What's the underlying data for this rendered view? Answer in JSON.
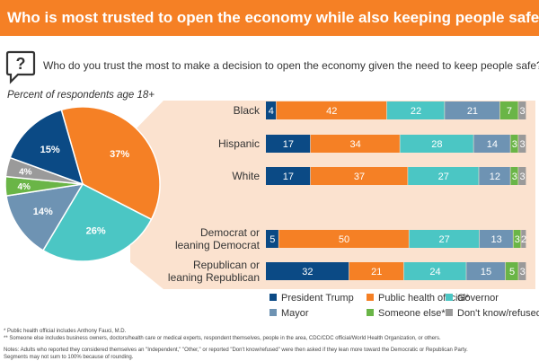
{
  "header": {
    "title": "Who is most trusted to open the economy while also keeping people safe?"
  },
  "question": "Who do you trust the most to make a decision to open the economy given the need to keep people safe?",
  "subtitle": "Percent of respondents age 18+",
  "colors": {
    "banner": "#f58025",
    "panel": "#fbe2cf",
    "text_on_dark": "#ffffff",
    "text_on_light": "#333333"
  },
  "chart_data": [
    {
      "type": "pie",
      "title": "Percent of respondents age 18+",
      "slices": [
        {
          "key": "public_health",
          "label": "Public health official*",
          "value": 37,
          "display": "37%",
          "color": "#f58025"
        },
        {
          "key": "governor",
          "label": "Governor",
          "value": 26,
          "display": "26%",
          "color": "#4bc6c4"
        },
        {
          "key": "mayor",
          "label": "Mayor",
          "value": 14,
          "display": "14%",
          "color": "#6e93b3"
        },
        {
          "key": "someone_else",
          "label": "Someone else**",
          "value": 4,
          "display": "4%",
          "color": "#6ab547"
        },
        {
          "key": "dont_know",
          "label": "Don't know/refused",
          "value": 4,
          "display": "4%",
          "color": "#9a9a9a"
        },
        {
          "key": "trump",
          "label": "President Trump",
          "value": 15,
          "display": "15%",
          "color": "#0b4a85"
        }
      ]
    },
    {
      "type": "bar",
      "stacked": true,
      "orientation": "horizontal",
      "categories": [
        "Black",
        "Hispanic",
        "White",
        "Democrat or leaning Democrat",
        "Republican or leaning Republican"
      ],
      "category_lines": [
        [
          "Black"
        ],
        [
          "Hispanic"
        ],
        [
          "White"
        ],
        [
          "Democrat or",
          "leaning Democrat"
        ],
        [
          "Republican or",
          "leaning Republican"
        ]
      ],
      "series": [
        {
          "name": "President Trump",
          "color": "#0b4a85",
          "values": [
            4,
            17,
            17,
            5,
            32
          ]
        },
        {
          "name": "Public health official*",
          "color": "#f58025",
          "values": [
            42,
            34,
            37,
            50,
            21
          ]
        },
        {
          "name": "Governor",
          "color": "#4bc6c4",
          "values": [
            22,
            28,
            27,
            27,
            24
          ]
        },
        {
          "name": "Mayor",
          "color": "#6e93b3",
          "values": [
            21,
            14,
            12,
            13,
            15
          ]
        },
        {
          "name": "Someone else**",
          "color": "#6ab547",
          "values": [
            7,
            3,
            3,
            3,
            5
          ]
        },
        {
          "name": "Don't know/refused",
          "color": "#9a9a9a",
          "values": [
            3,
            3,
            3,
            2,
            3
          ]
        }
      ]
    }
  ],
  "legend": [
    {
      "label": "President Trump",
      "color": "#0b4a85"
    },
    {
      "label": "Public health official*",
      "color": "#f58025"
    },
    {
      "label": "Governor",
      "color": "#4bc6c4"
    },
    {
      "label": "Mayor",
      "color": "#6e93b3"
    },
    {
      "label": "Someone else**",
      "color": "#6ab547"
    },
    {
      "label": "Don't know/refused",
      "color": "#9a9a9a"
    }
  ],
  "footnotes": {
    "note1": "* Public health official includes Anthony Fauci, M.D.",
    "note2": "** Someone else includes business owners, doctors/health care or medical experts, respondent themselves, people in the area, CDC/CDC official/World Health Organization, or others.",
    "note3": "Notes: Adults who reported they considered themselves an \"Independent,\" \"Other,\" or reported \"Don't know/refused\" were then asked if they lean more toward the Democratic or Republican Party.",
    "note4": "Segments may not sum to 100% because of rounding."
  }
}
